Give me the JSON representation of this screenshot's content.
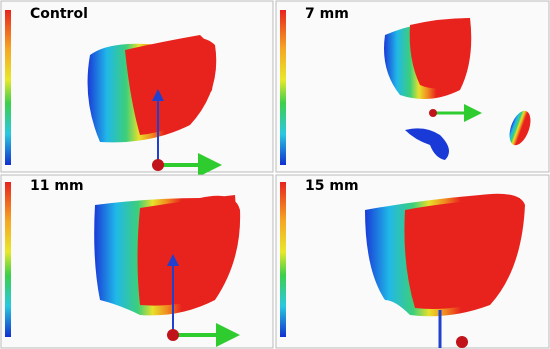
{
  "panels": [
    {
      "label": "Control"
    },
    {
      "label": "7 mm"
    },
    {
      "label": "11 mm"
    },
    {
      "label": "15 mm"
    }
  ]
}
